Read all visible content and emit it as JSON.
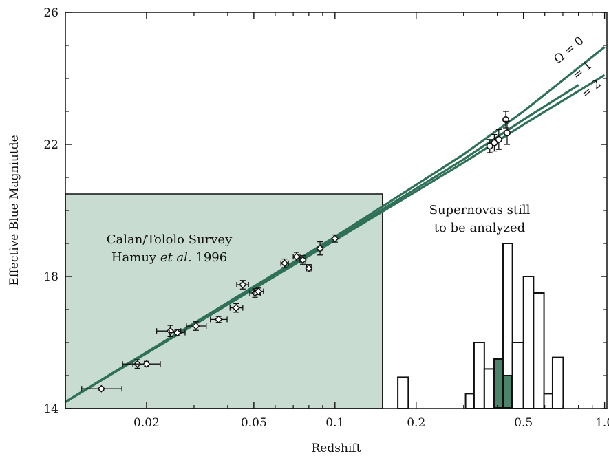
{
  "chart_data": {
    "type": "scatter",
    "xlabel": "Redshift",
    "ylabel": "Effective Blue Magniutde",
    "x_scale": "log",
    "xlim": [
      0.01,
      1.02
    ],
    "ylim": [
      14,
      26
    ],
    "grid": false,
    "x_ticks": [
      {
        "value": 0.02,
        "label": "0.02"
      },
      {
        "value": 0.05,
        "label": "0.05"
      },
      {
        "value": 0.1,
        "label": "0.1"
      },
      {
        "value": 0.2,
        "label": "0.2"
      },
      {
        "value": 0.5,
        "label": "0.5"
      },
      {
        "value": 1.0,
        "label": "1.0"
      }
    ],
    "x_minor_ticks": [
      0.03,
      0.04,
      0.06,
      0.07,
      0.08,
      0.09,
      0.3,
      0.4,
      0.6,
      0.7,
      0.8,
      0.9
    ],
    "y_ticks": [
      {
        "value": 14,
        "label": "14"
      },
      {
        "value": 18,
        "label": "18"
      },
      {
        "value": 22,
        "label": "22"
      },
      {
        "value": 26,
        "label": "26"
      }
    ],
    "y_minor_ticks": [
      15,
      16,
      17,
      19,
      20,
      21,
      23,
      24,
      25
    ],
    "colors": {
      "curve": "#2f7058",
      "survey_fill": "#c9dcd2",
      "hist_fill": "#4d826b",
      "axis": "#111111"
    },
    "shaded_region": {
      "x": [
        0.01,
        0.15
      ],
      "y": [
        14,
        20.5
      ],
      "label_line1": "Calan/Tololo Survey",
      "label_line2_name": "Hamuy ",
      "label_line2_italic": "et al.",
      "label_line2_year": " 1996"
    },
    "histogram_annotation": {
      "line1": "Supernovas still",
      "line2": "to be analyzed"
    },
    "curves": [
      {
        "label": "Ω = 0",
        "points": [
          [
            0.01,
            14.2
          ],
          [
            0.1,
            19.2
          ],
          [
            0.3,
            21.7
          ],
          [
            0.5,
            23.0
          ],
          [
            1.0,
            24.95
          ]
        ]
      },
      {
        "label": "= 1",
        "points": [
          [
            0.01,
            14.2
          ],
          [
            0.1,
            19.15
          ],
          [
            0.3,
            21.55
          ],
          [
            0.5,
            22.75
          ],
          [
            0.8,
            23.8
          ]
        ]
      },
      {
        "label": "= 2",
        "points": [
          [
            0.01,
            14.2
          ],
          [
            0.1,
            19.1
          ],
          [
            0.3,
            21.45
          ],
          [
            0.5,
            22.6
          ],
          [
            1.0,
            24.1
          ]
        ]
      }
    ],
    "survey_points": [
      {
        "x": 0.0136,
        "y": 14.6,
        "xerr": [
          0.0115,
          0.0162
        ],
        "yerr": 0.05
      },
      {
        "x": 0.0185,
        "y": 15.35,
        "xerr": [
          0.0163,
          0.0203
        ],
        "yerr": 0.13
      },
      {
        "x": 0.02,
        "y": 15.35,
        "xerr": [
          0.0178,
          0.0225
        ],
        "yerr": 0.08
      },
      {
        "x": 0.0245,
        "y": 16.35,
        "xerr": [
          0.0218,
          0.0268
        ],
        "yerr": 0.17
      },
      {
        "x": 0.026,
        "y": 16.3,
        "xerr": [
          0.0243,
          0.0278
        ],
        "yerr": 0.09
      },
      {
        "x": 0.0305,
        "y": 16.5,
        "xerr": [
          0.0281,
          0.0333
        ],
        "yerr": 0.13
      },
      {
        "x": 0.037,
        "y": 16.7,
        "xerr": [
          0.0345,
          0.0398
        ],
        "yerr": 0.09
      },
      {
        "x": 0.043,
        "y": 17.05,
        "xerr": [
          0.0408,
          0.0455
        ],
        "yerr": 0.13
      },
      {
        "x": 0.0455,
        "y": 17.75,
        "xerr": [
          0.0432,
          0.0478
        ],
        "yerr": 0.13
      },
      {
        "x": 0.0505,
        "y": 17.5,
        "xerr": [
          0.0483,
          0.0528
        ],
        "yerr": 0.13
      },
      {
        "x": 0.052,
        "y": 17.55,
        "xerr": [
          0.05,
          0.0543
        ],
        "yerr": 0.1
      },
      {
        "x": 0.065,
        "y": 18.4,
        "xerr": [
          0.063,
          0.0672
        ],
        "yerr": 0.13
      },
      {
        "x": 0.072,
        "y": 18.6,
        "xerr": [
          0.07,
          0.0742
        ],
        "yerr": 0.13
      },
      {
        "x": 0.076,
        "y": 18.5,
        "xerr": [
          0.0742,
          0.0778
        ],
        "yerr": 0.13
      },
      {
        "x": 0.08,
        "y": 18.25,
        "xerr": [
          0.0784,
          0.0816
        ],
        "yerr": 0.11
      },
      {
        "x": 0.088,
        "y": 18.85,
        "xerr": [
          0.0865,
          0.0895
        ],
        "yerr": 0.2
      },
      {
        "x": 0.1,
        "y": 19.15,
        "xerr": [
          0.0988,
          0.1012
        ],
        "yerr": 0.11
      }
    ],
    "high_z_points": [
      {
        "x": 0.375,
        "y": 21.95,
        "yerr": 0.2
      },
      {
        "x": 0.39,
        "y": 22.05,
        "yerr": 0.25
      },
      {
        "x": 0.405,
        "y": 22.15,
        "yerr": 0.3
      },
      {
        "x": 0.43,
        "y": 22.75,
        "yerr": 0.25
      },
      {
        "x": 0.435,
        "y": 22.35,
        "yerr": 0.35
      }
    ],
    "histogram": {
      "bars": [
        {
          "x0": 0.171,
          "x1": 0.187,
          "top": 14.95
        },
        {
          "x0": 0.305,
          "x1": 0.328,
          "top": 14.45
        },
        {
          "x0": 0.328,
          "x1": 0.358,
          "top": 16.0
        },
        {
          "x0": 0.358,
          "x1": 0.388,
          "top": 15.2
        },
        {
          "x0": 0.388,
          "x1": 0.42,
          "top": 15.5
        },
        {
          "x0": 0.42,
          "x1": 0.455,
          "top": 19.0
        },
        {
          "x0": 0.455,
          "x1": 0.5,
          "top": 16.0
        },
        {
          "x0": 0.5,
          "x1": 0.545,
          "top": 18.0
        },
        {
          "x0": 0.545,
          "x1": 0.596,
          "top": 17.5
        },
        {
          "x0": 0.596,
          "x1": 0.641,
          "top": 14.45
        },
        {
          "x0": 0.641,
          "x1": 0.702,
          "top": 15.55
        }
      ],
      "filled_bars": [
        {
          "x0": 0.388,
          "x1": 0.42,
          "top": 15.5
        },
        {
          "x0": 0.42,
          "x1": 0.455,
          "top": 15.0
        }
      ]
    }
  }
}
